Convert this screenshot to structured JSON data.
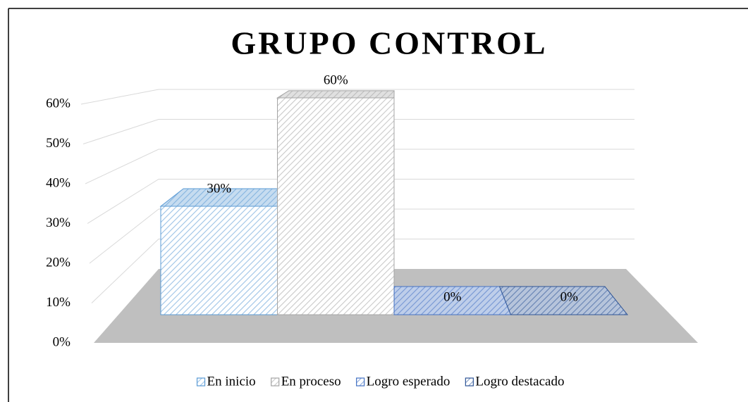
{
  "chart_data": {
    "type": "bar3d",
    "title": "GRUPO CONTROL",
    "series": [
      {
        "name": "En inicio",
        "color": "#5b9bd5",
        "values": [
          30
        ],
        "value_labels": [
          "30%"
        ]
      },
      {
        "name": "En proceso",
        "color": "#a5a5a5",
        "values": [
          60
        ],
        "value_labels": [
          "60%"
        ]
      },
      {
        "name": "Logro esperado",
        "color": "#4472c4",
        "values": [
          0
        ],
        "value_labels": [
          "0%"
        ]
      },
      {
        "name": "Logro destacado",
        "color": "#2f5597",
        "values": [
          0
        ],
        "value_labels": [
          "0%"
        ]
      }
    ],
    "ylim": [
      0,
      60
    ],
    "yticks": [
      {
        "value": 0,
        "label": "0%"
      },
      {
        "value": 10,
        "label": "10%"
      },
      {
        "value": 20,
        "label": "20%"
      },
      {
        "value": 30,
        "label": "30%"
      },
      {
        "value": 40,
        "label": "40%"
      },
      {
        "value": 50,
        "label": "50%"
      },
      {
        "value": 60,
        "label": "60%"
      }
    ],
    "grid": true,
    "legend": "bottom"
  }
}
